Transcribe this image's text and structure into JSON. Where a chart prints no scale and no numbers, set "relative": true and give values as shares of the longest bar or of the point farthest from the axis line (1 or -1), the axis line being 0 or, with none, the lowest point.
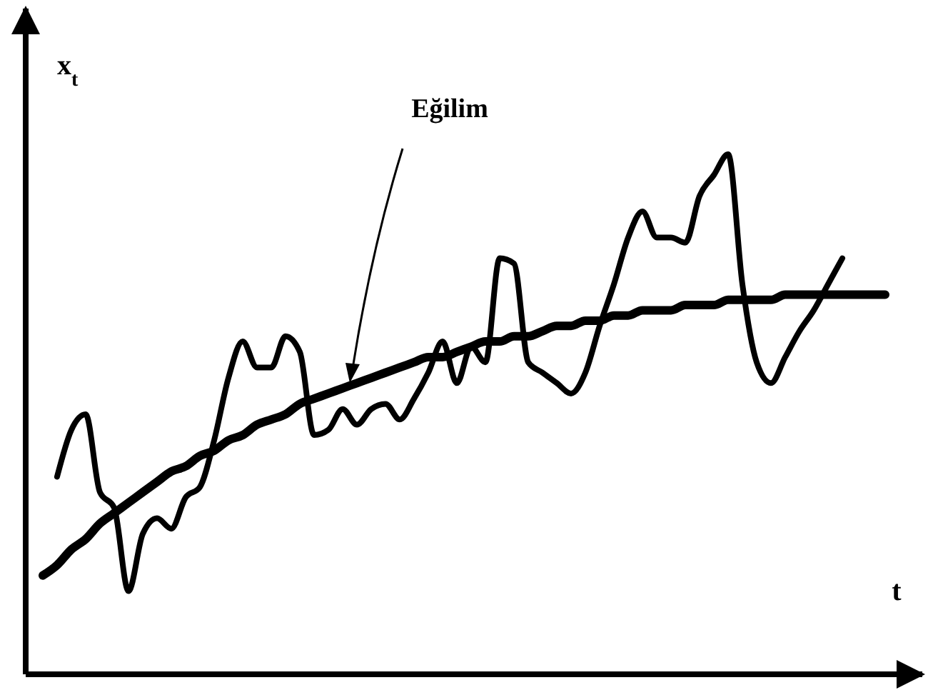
{
  "chart_data": {
    "type": "line",
    "relative": true,
    "xlabel": "t",
    "ylabel": "x$_{t}$",
    "line_style": "solid",
    "annotations": [
      "Eğilim"
    ],
    "categories": [
      null,
      null,
      null,
      null,
      null,
      null,
      null,
      null,
      null,
      null,
      null,
      null,
      null,
      null,
      null,
      null,
      null,
      null,
      null,
      null,
      null,
      null,
      null,
      null,
      null,
      null,
      null,
      null,
      null,
      null,
      null,
      null,
      null,
      null,
      null,
      null,
      null,
      null,
      null,
      null,
      null,
      null,
      null,
      null,
      null,
      null,
      null,
      null,
      null,
      null,
      null,
      null,
      null,
      null,
      null,
      null,
      null,
      null,
      null,
      null
    ],
    "series": [
      {
        "color": "#000000",
        "values": [
          null,
          0.38,
          0.47,
          0.5,
          0.35,
          0.32,
          0.16,
          0.27,
          0.3,
          0.28,
          0.34,
          0.36,
          0.45,
          0.57,
          0.64,
          0.59,
          0.59,
          0.65,
          0.62,
          0.46,
          0.47,
          0.51,
          0.48,
          0.51,
          0.52,
          0.49,
          0.53,
          0.58,
          0.64,
          0.56,
          0.63,
          0.6,
          0.8,
          0.79,
          0.6,
          0.58,
          0.56,
          0.54,
          0.58,
          0.67,
          0.75,
          0.84,
          0.89,
          0.84,
          0.84,
          0.83,
          0.92,
          0.96,
          1,
          0.75,
          0.6,
          0.56,
          0.61,
          0.66,
          0.7,
          0.75,
          0.8,
          null,
          null,
          null
        ]
      },
      {
        "color": "#000000",
        "values": [
          0.19,
          0.21,
          0.24,
          0.26,
          0.29,
          0.31,
          0.33,
          0.35,
          0.37,
          0.39,
          0.4,
          0.42,
          0.43,
          0.45,
          0.46,
          0.48,
          0.49,
          0.5,
          0.52,
          0.53,
          0.54,
          0.55,
          0.56,
          0.57,
          0.58,
          0.59,
          0.6,
          0.61,
          0.61,
          0.62,
          0.63,
          0.64,
          0.64,
          0.65,
          0.65,
          0.66,
          0.67,
          0.67,
          0.68,
          0.68,
          0.69,
          0.69,
          0.7,
          0.7,
          0.7,
          0.71,
          0.71,
          0.71,
          0.72,
          0.72,
          0.72,
          0.72,
          0.73,
          0.73,
          0.73,
          0.73,
          0.73,
          0.73,
          0.73,
          0.73
        ]
      }
    ]
  }
}
